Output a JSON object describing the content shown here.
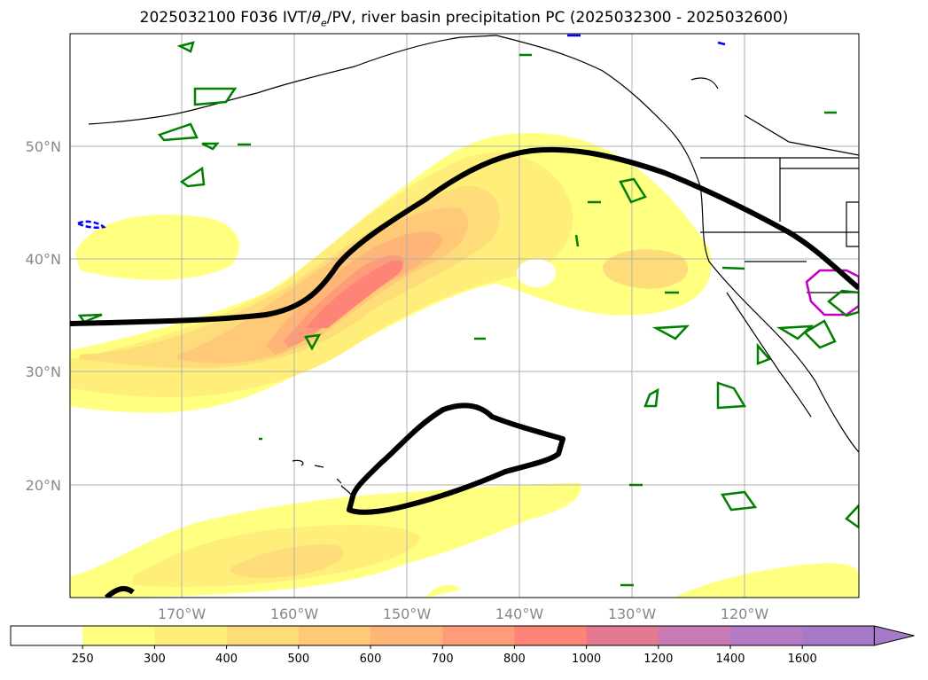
{
  "title": {
    "prefix": "2025032100 F036 IVT/",
    "theta": "θ",
    "theta_sub": "e",
    "suffix": "/PV, river basin precipitation PC (2025032300 - 2025032600)"
  },
  "map": {
    "lat_labels": [
      "50°N",
      "40°N",
      "30°N",
      "20°N"
    ],
    "lon_labels": [
      "170°W",
      "160°W",
      "150°W",
      "140°W",
      "130°W",
      "120°W"
    ]
  },
  "colorbar": {
    "ticks": [
      "250",
      "300",
      "400",
      "500",
      "600",
      "700",
      "800",
      "1000",
      "1200",
      "1400",
      "1600"
    ],
    "colors": [
      "#ffffff",
      "#ffff80",
      "#ffef7a",
      "#ffdc7a",
      "#ffc978",
      "#ffb478",
      "#ff9c78",
      "#ff8478",
      "#e47a90",
      "#c97ab4",
      "#b47ac4",
      "#a67ac8"
    ]
  }
}
